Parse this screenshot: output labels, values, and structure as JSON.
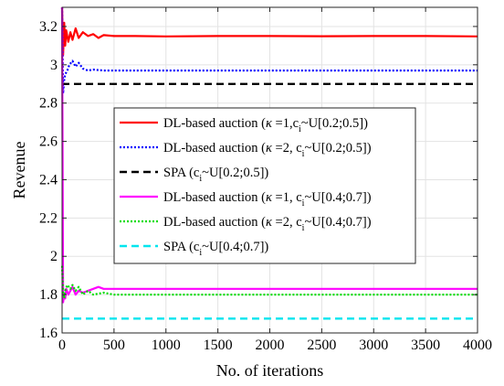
{
  "chart_data": {
    "type": "line",
    "xlabel": "No. of iterations",
    "ylabel": "Revenue",
    "xlim": [
      0,
      4000
    ],
    "ylim": [
      1.6,
      3.3
    ],
    "x_ticks": [
      0,
      500,
      1000,
      1500,
      2000,
      2500,
      3000,
      3500,
      4000
    ],
    "y_ticks": [
      1.6,
      1.8,
      2,
      2.2,
      2.4,
      2.6,
      2.8,
      3,
      3.2
    ],
    "x_tick_labels": [
      "0",
      "500",
      "1000",
      "1500",
      "2000",
      "2500",
      "3000",
      "3500",
      "4000"
    ],
    "y_tick_labels": [
      "1.6",
      "1.8",
      "2",
      "2.2",
      "2.4",
      "2.6",
      "2.8",
      "3",
      "3.2"
    ],
    "grid": true,
    "legend_placement": "center-right",
    "series": [
      {
        "legend": {
          "main": "DL-based auction (",
          "kappa": "κ",
          "rest1": " =1,c",
          "sub": "i",
          "rest2": "~U[0.2;0.5])"
        },
        "color": "#ff0000",
        "dash": "solid",
        "width": 2.2,
        "x": [
          0,
          10,
          20,
          30,
          40,
          60,
          80,
          100,
          130,
          160,
          200,
          250,
          300,
          350,
          400,
          500,
          700,
          1000,
          1500,
          2000,
          2500,
          3000,
          3500,
          4000
        ],
        "y": [
          3.3,
          3.05,
          3.22,
          3.1,
          3.18,
          3.12,
          3.17,
          3.13,
          3.19,
          3.14,
          3.17,
          3.15,
          3.16,
          3.14,
          3.155,
          3.15,
          3.15,
          3.148,
          3.15,
          3.15,
          3.149,
          3.15,
          3.15,
          3.148
        ]
      },
      {
        "legend": {
          "main": "DL-based auction (",
          "kappa": "κ",
          "rest1": " =2, c",
          "sub": "i",
          "rest2": "~U[0.2;0.5])"
        },
        "color": "#0000ff",
        "dash": "dotted",
        "width": 2.2,
        "x": [
          0,
          10,
          20,
          30,
          50,
          70,
          100,
          130,
          160,
          200,
          250,
          300,
          400,
          500,
          700,
          1000,
          1500,
          2000,
          2500,
          3000,
          3500,
          4000
        ],
        "y": [
          3.3,
          2.85,
          2.92,
          2.95,
          2.97,
          3.0,
          3.02,
          2.99,
          3.01,
          2.98,
          2.97,
          2.975,
          2.97,
          2.97,
          2.97,
          2.97,
          2.97,
          2.97,
          2.97,
          2.97,
          2.97,
          2.97
        ]
      },
      {
        "legend": {
          "main": "SPA (c",
          "kappa": "",
          "rest1": "",
          "sub": "i",
          "rest2": "~U[0.2;0.5])"
        },
        "color": "#000000",
        "dash": "dashed",
        "width": 2.4,
        "x": [
          0,
          4000
        ],
        "y": [
          2.9,
          2.9
        ]
      },
      {
        "legend": {
          "main": "DL-based auction (",
          "kappa": "κ",
          "rest1": " =1, c",
          "sub": "i",
          "rest2": "~U[0.4;0.7])"
        },
        "color": "#ff00ff",
        "dash": "solid",
        "width": 2.2,
        "x": [
          0,
          10,
          20,
          30,
          40,
          60,
          80,
          100,
          130,
          160,
          200,
          250,
          300,
          350,
          400,
          500,
          700,
          1000,
          1500,
          2000,
          2500,
          3000,
          3500,
          4000
        ],
        "y": [
          3.3,
          1.76,
          1.8,
          1.78,
          1.83,
          1.8,
          1.82,
          1.84,
          1.8,
          1.82,
          1.81,
          1.82,
          1.83,
          1.84,
          1.83,
          1.83,
          1.83,
          1.83,
          1.83,
          1.83,
          1.83,
          1.83,
          1.83,
          1.83
        ]
      },
      {
        "legend": {
          "main": "DL-based auction (",
          "kappa": "κ",
          "rest1": " =2, c",
          "sub": "i",
          "rest2": "~U[0.4;0.7])"
        },
        "color": "#00dd00",
        "dash": "dotted",
        "width": 2.2,
        "x": [
          0,
          10,
          20,
          30,
          50,
          80,
          100,
          130,
          160,
          200,
          250,
          300,
          400,
          500,
          700,
          1000,
          1500,
          2000,
          2500,
          3000,
          3500,
          4000
        ],
        "y": [
          1.95,
          1.82,
          1.78,
          1.82,
          1.85,
          1.83,
          1.85,
          1.82,
          1.84,
          1.8,
          1.82,
          1.8,
          1.81,
          1.8,
          1.8,
          1.8,
          1.8,
          1.8,
          1.8,
          1.8,
          1.8,
          1.8
        ]
      },
      {
        "legend": {
          "main": "SPA (c",
          "kappa": "",
          "rest1": "",
          "sub": "i",
          "rest2": "~U[0.4;0.7])"
        },
        "color": "#00e5ee",
        "dash": "dashed",
        "width": 2.4,
        "x": [
          0,
          4000
        ],
        "y": [
          1.675,
          1.675
        ]
      }
    ]
  }
}
